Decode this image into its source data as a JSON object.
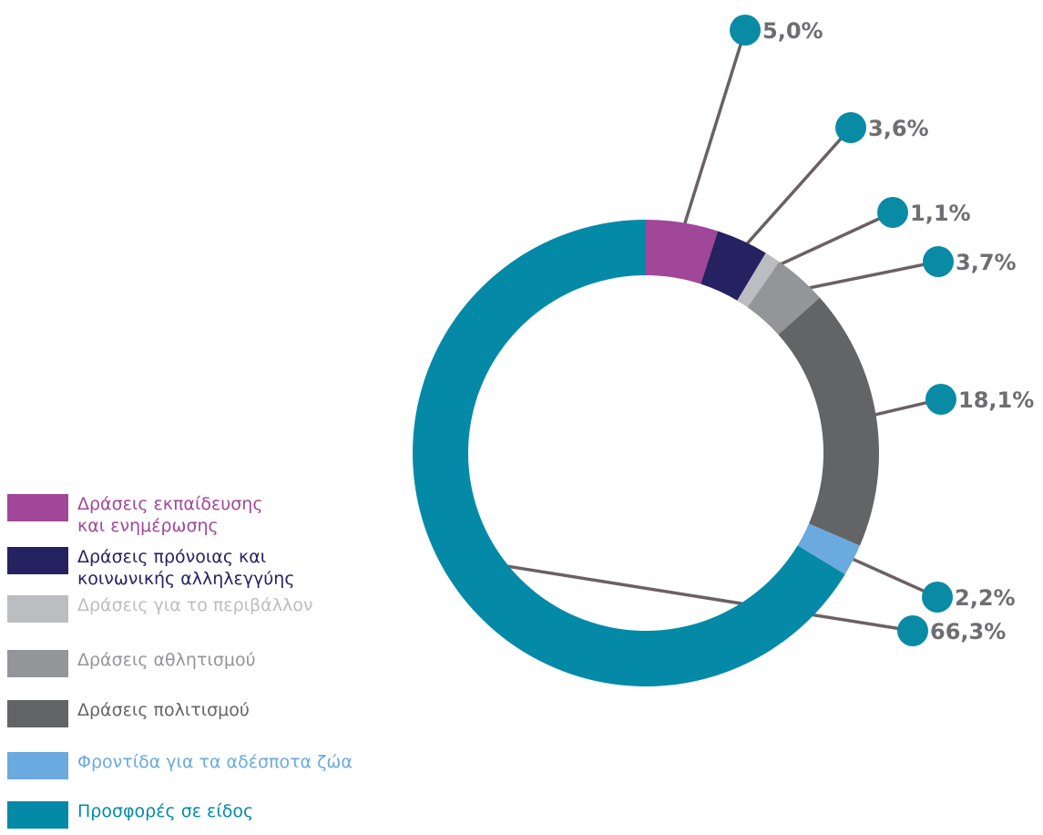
{
  "chart_data": {
    "type": "donut",
    "categories": [
      "Δράσεις εκπαίδευσης\nκαι ενημέρωσης",
      "Δράσεις πρόνοιας και\nκοινωνικής αλληλεγγύης",
      "Δράσεις για το περιβάλλον",
      "Δράσεις αθλητισμού",
      "Δράσεις πολιτισμού",
      "Φροντίδα για τα αδέσποτα ζώα",
      "Προσφορές σε είδος"
    ],
    "values": [
      5.0,
      3.6,
      1.1,
      3.7,
      18.1,
      2.2,
      66.3
    ],
    "value_labels": [
      "5,0%",
      "3,6%",
      "1,1%",
      "3,7%",
      "18,1%",
      "2,2%",
      "66,3%"
    ],
    "colors": [
      "#a0479a",
      "#262262",
      "#bcbdc0",
      "#939598",
      "#636466",
      "#6aaade",
      "#048aa6"
    ],
    "legend": "left"
  }
}
